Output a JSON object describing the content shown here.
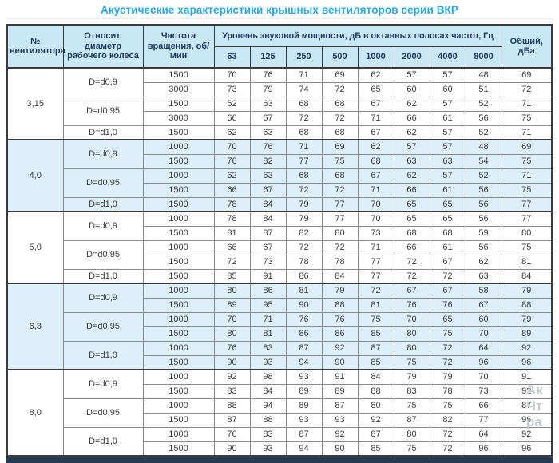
{
  "title": "Акустические характеристики крышных вентиляторов серии ВКР",
  "table": {
    "headers": {
      "fan_number": "№ вентилятора",
      "diameter": "Относит. диаметр рабочего колеса",
      "speed": "Частота вращения, об/мин",
      "spl_group": "Уровень звуковой мощности, дБ в октавных полосах частот, Гц",
      "octave_bands": [
        "63",
        "125",
        "250",
        "500",
        "1000",
        "2000",
        "4000",
        "8000"
      ],
      "total": "Общий, дБа"
    },
    "groups": [
      {
        "fan": "3,15",
        "shaded": false,
        "diameters": [
          {
            "label": "D=d0,9",
            "rows": [
              {
                "speed": "1500",
                "levels": [
                  70,
                  76,
                  71,
                  69,
                  62,
                  57,
                  57,
                  48
                ],
                "total": 69
              },
              {
                "speed": "3000",
                "levels": [
                  73,
                  79,
                  74,
                  72,
                  65,
                  60,
                  60,
                  51
                ],
                "total": 72
              }
            ]
          },
          {
            "label": "D=d0,95",
            "rows": [
              {
                "speed": "1500",
                "levels": [
                  62,
                  63,
                  68,
                  68,
                  67,
                  62,
                  57,
                  52
                ],
                "total": 71
              },
              {
                "speed": "3000",
                "levels": [
                  66,
                  67,
                  72,
                  72,
                  71,
                  66,
                  61,
                  56
                ],
                "total": 75
              }
            ]
          },
          {
            "label": "D=d1,0",
            "rows": [
              {
                "speed": "1500",
                "levels": [
                  62,
                  63,
                  68,
                  68,
                  67,
                  62,
                  57,
                  52
                ],
                "total": 71
              }
            ]
          }
        ]
      },
      {
        "fan": "4,0",
        "shaded": true,
        "diameters": [
          {
            "label": "D=d0,9",
            "rows": [
              {
                "speed": "1000",
                "levels": [
                  70,
                  76,
                  71,
                  69,
                  62,
                  57,
                  57,
                  48
                ],
                "total": 69
              },
              {
                "speed": "1500",
                "levels": [
                  76,
                  82,
                  77,
                  75,
                  68,
                  63,
                  63,
                  54
                ],
                "total": 75
              }
            ]
          },
          {
            "label": "D=d0,95",
            "rows": [
              {
                "speed": "1000",
                "levels": [
                  62,
                  63,
                  68,
                  68,
                  67,
                  62,
                  57,
                  52
                ],
                "total": 71
              },
              {
                "speed": "1500",
                "levels": [
                  66,
                  67,
                  72,
                  72,
                  71,
                  66,
                  61,
                  56
                ],
                "total": 75
              }
            ]
          },
          {
            "label": "D=d1,0",
            "rows": [
              {
                "speed": "1500",
                "levels": [
                  78,
                  84,
                  79,
                  77,
                  70,
                  65,
                  65,
                  56
                ],
                "total": 77
              }
            ]
          }
        ]
      },
      {
        "fan": "5,0",
        "shaded": false,
        "diameters": [
          {
            "label": "D=d0,9",
            "rows": [
              {
                "speed": "1000",
                "levels": [
                  78,
                  84,
                  79,
                  77,
                  70,
                  65,
                  65,
                  56
                ],
                "total": 77
              },
              {
                "speed": "1500",
                "levels": [
                  81,
                  87,
                  82,
                  80,
                  73,
                  68,
                  68,
                  59
                ],
                "total": 80
              }
            ]
          },
          {
            "label": "D=d0,95",
            "rows": [
              {
                "speed": "1000",
                "levels": [
                  66,
                  67,
                  72,
                  72,
                  71,
                  66,
                  61,
                  56
                ],
                "total": 75
              },
              {
                "speed": "1500",
                "levels": [
                  72,
                  73,
                  78,
                  78,
                  77,
                  72,
                  67,
                  62
                ],
                "total": 81
              }
            ]
          },
          {
            "label": "D=d1,0",
            "rows": [
              {
                "speed": "1500",
                "levels": [
                  85,
                  91,
                  86,
                  84,
                  77,
                  72,
                  72,
                  63
                ],
                "total": 84
              }
            ]
          }
        ]
      },
      {
        "fan": "6,3",
        "shaded": true,
        "diameters": [
          {
            "label": "D=d0,9",
            "rows": [
              {
                "speed": "1000",
                "levels": [
                  80,
                  86,
                  81,
                  79,
                  72,
                  67,
                  67,
                  58
                ],
                "total": 79
              },
              {
                "speed": "1500",
                "levels": [
                  89,
                  95,
                  90,
                  88,
                  81,
                  76,
                  76,
                  67
                ],
                "total": 88
              }
            ]
          },
          {
            "label": "D=d0,95",
            "rows": [
              {
                "speed": "1000",
                "levels": [
                  70,
                  71,
                  76,
                  76,
                  75,
                  70,
                  65,
                  60
                ],
                "total": 79
              },
              {
                "speed": "1500",
                "levels": [
                  80,
                  81,
                  86,
                  86,
                  85,
                  80,
                  75,
                  70
                ],
                "total": 89
              }
            ]
          },
          {
            "label": "D=d1,0",
            "rows": [
              {
                "speed": "1000",
                "levels": [
                  76,
                  83,
                  87,
                  92,
                  87,
                  80,
                  72,
                  64
                ],
                "total": 92
              },
              {
                "speed": "1500",
                "levels": [
                  90,
                  93,
                  94,
                  90,
                  85,
                  75,
                  72,
                  96
                ],
                "total": 96
              }
            ]
          }
        ]
      },
      {
        "fan": "8,0",
        "shaded": false,
        "diameters": [
          {
            "label": "D=d0,9",
            "rows": [
              {
                "speed": "1000",
                "levels": [
                  92,
                  98,
                  93,
                  91,
                  84,
                  79,
                  79,
                  70
                ],
                "total": 91
              },
              {
                "speed": "1500",
                "levels": [
                  83,
                  84,
                  89,
                  89,
                  88,
                  83,
                  78,
                  73
                ],
                "total": 92
              }
            ]
          },
          {
            "label": "D=d0,95",
            "rows": [
              {
                "speed": "1000",
                "levels": [
                  88,
                  94,
                  89,
                  87,
                  80,
                  75,
                  75,
                  66
                ],
                "total": 87
              },
              {
                "speed": "1500",
                "levels": [
                  87,
                  88,
                  93,
                  93,
                  92,
                  87,
                  82,
                  77
                ],
                "total": 96
              }
            ]
          },
          {
            "label": "D=d1,0",
            "rows": [
              {
                "speed": "1000",
                "levels": [
                  76,
                  83,
                  87,
                  92,
                  87,
                  80,
                  72,
                  64
                ],
                "total": 92
              },
              {
                "speed": "1500",
                "levels": [
                  90,
                  93,
                  94,
                  90,
                  85,
                  75,
                  72,
                  96
                ],
                "total": 96
              }
            ]
          }
        ]
      }
    ]
  },
  "watermark": {
    "lines": [
      "Ак",
      "Чт",
      "ра"
    ]
  },
  "colors": {
    "title": "#29a9e0",
    "header_bg": "#c9e7f5",
    "shaded_row_bg": "#dceffa",
    "strong_border": "#3a3a3a",
    "bottom_bar": "#253950"
  }
}
